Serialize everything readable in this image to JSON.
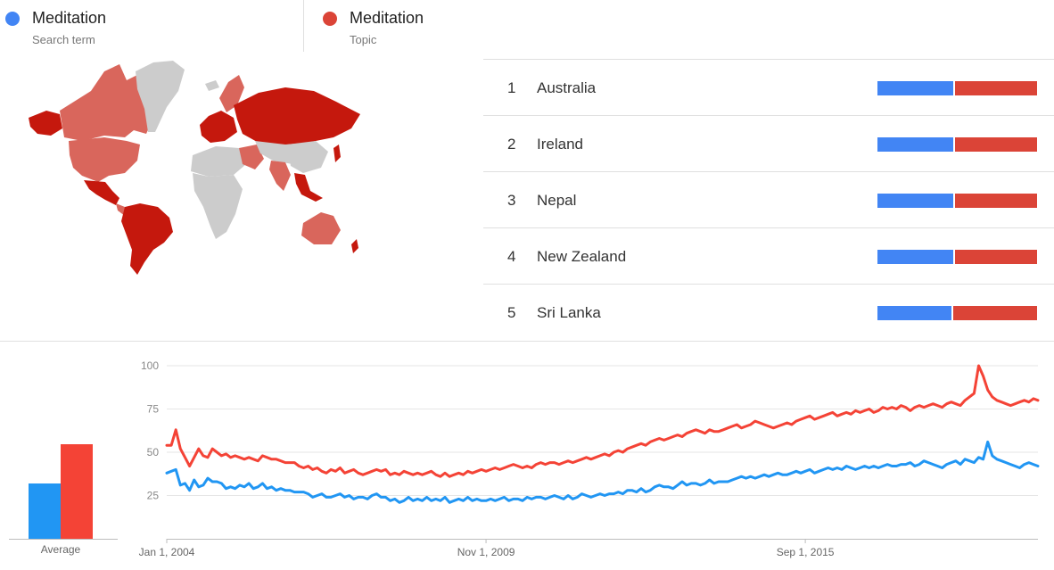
{
  "legend": [
    {
      "name": "Meditation",
      "type": "Search term",
      "color": "#4285f4"
    },
    {
      "name": "Meditation",
      "type": "Topic",
      "color": "#db4437"
    }
  ],
  "ranking": [
    {
      "rank": "1",
      "country": "Australia",
      "share_search_term": 0.48
    },
    {
      "rank": "2",
      "country": "Ireland",
      "share_search_term": 0.48
    },
    {
      "rank": "3",
      "country": "Nepal",
      "share_search_term": 0.48
    },
    {
      "rank": "4",
      "country": "New Zealand",
      "share_search_term": 0.48
    },
    {
      "rank": "5",
      "country": "Sri Lanka",
      "share_search_term": 0.47
    }
  ],
  "chart_data": [
    {
      "type": "bar",
      "categories": [
        "Average"
      ],
      "series": [
        {
          "values": [
            31
          ],
          "color": "#2196f3"
        },
        {
          "values": [
            53
          ],
          "color": "#f44336"
        }
      ],
      "ylim": [
        0,
        100
      ]
    },
    {
      "type": "line",
      "x_tick_labels": [
        "Jan 1, 2004",
        "Nov 1, 2009",
        "Sep 1, 2015"
      ],
      "y_tick_labels": [
        "25",
        "50",
        "75",
        "100"
      ],
      "yticks": [
        25,
        50,
        75,
        100
      ],
      "ylim": [
        0,
        100
      ],
      "x_start": "2004-01",
      "frequency": "monthly",
      "grid": true,
      "series": [
        {
          "color": "#2196f3",
          "values": [
            38,
            39,
            40,
            31,
            32,
            28,
            34,
            30,
            31,
            35,
            33,
            33,
            32,
            29,
            30,
            29,
            31,
            30,
            32,
            29,
            30,
            32,
            29,
            30,
            28,
            29,
            28,
            28,
            27,
            27,
            27,
            26,
            24,
            25,
            26,
            24,
            24,
            25,
            26,
            24,
            25,
            23,
            24,
            24,
            23,
            25,
            26,
            24,
            24,
            22,
            23,
            21,
            22,
            24,
            22,
            23,
            22,
            24,
            22,
            23,
            22,
            24,
            21,
            22,
            23,
            22,
            24,
            22,
            23,
            22,
            22,
            23,
            22,
            23,
            24,
            22,
            23,
            23,
            22,
            24,
            23,
            24,
            24,
            23,
            24,
            25,
            24,
            23,
            25,
            23,
            24,
            26,
            25,
            24,
            25,
            26,
            25,
            26,
            26,
            27,
            26,
            28,
            28,
            27,
            29,
            27,
            28,
            30,
            31,
            30,
            30,
            29,
            31,
            33,
            31,
            32,
            32,
            31,
            32,
            34,
            32,
            33,
            33,
            33,
            34,
            35,
            36,
            35,
            36,
            35,
            36,
            37,
            36,
            37,
            38,
            37,
            37,
            38,
            39,
            38,
            39,
            40,
            38,
            39,
            40,
            41,
            40,
            41,
            40,
            42,
            41,
            40,
            41,
            42,
            41,
            42,
            41,
            42,
            43,
            42,
            42,
            43,
            43,
            44,
            42,
            43,
            45,
            44,
            43,
            42,
            41,
            43,
            44,
            45,
            43,
            46,
            45,
            44,
            47,
            46,
            56,
            48,
            46,
            45,
            44,
            43,
            42,
            41,
            43,
            44,
            43,
            42
          ]
        },
        {
          "color": "#f44336",
          "values": [
            54,
            54,
            63,
            52,
            47,
            42,
            47,
            52,
            48,
            47,
            52,
            50,
            48,
            49,
            47,
            48,
            47,
            46,
            47,
            46,
            45,
            48,
            47,
            46,
            46,
            45,
            44,
            44,
            44,
            42,
            41,
            42,
            40,
            41,
            39,
            38,
            40,
            39,
            41,
            38,
            39,
            40,
            38,
            37,
            38,
            39,
            40,
            39,
            40,
            37,
            38,
            37,
            39,
            38,
            37,
            38,
            37,
            38,
            39,
            37,
            36,
            38,
            36,
            37,
            38,
            37,
            39,
            38,
            39,
            40,
            39,
            40,
            41,
            40,
            41,
            42,
            43,
            42,
            41,
            42,
            41,
            43,
            44,
            43,
            44,
            44,
            43,
            44,
            45,
            44,
            45,
            46,
            47,
            46,
            47,
            48,
            49,
            48,
            50,
            51,
            50,
            52,
            53,
            54,
            55,
            54,
            56,
            57,
            58,
            57,
            58,
            59,
            60,
            59,
            61,
            62,
            63,
            62,
            61,
            63,
            62,
            62,
            63,
            64,
            65,
            66,
            64,
            65,
            66,
            68,
            67,
            66,
            65,
            64,
            65,
            66,
            67,
            66,
            68,
            69,
            70,
            71,
            69,
            70,
            71,
            72,
            73,
            71,
            72,
            73,
            72,
            74,
            73,
            74,
            75,
            73,
            74,
            76,
            75,
            76,
            75,
            77,
            76,
            74,
            76,
            77,
            76,
            77,
            78,
            77,
            76,
            78,
            79,
            78,
            77,
            80,
            82,
            84,
            100,
            94,
            86,
            82,
            80,
            79,
            78,
            77,
            78,
            79,
            80,
            79,
            81,
            80
          ]
        }
      ]
    }
  ]
}
